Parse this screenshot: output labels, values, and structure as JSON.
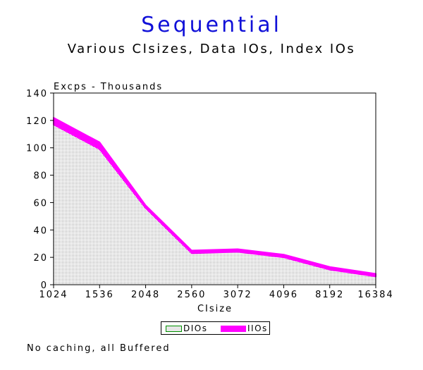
{
  "title": "Sequential",
  "subtitle": "Various CIsizes, Data IOs, Index IOs",
  "footnote": "No caching, all Buffered",
  "colors": {
    "title": "#1010d8",
    "index_ios": "#ff00ff",
    "data_ios_border": "#009000",
    "data_ios_fill": "#d8d8d8"
  },
  "chart_data": {
    "type": "area",
    "stacked": true,
    "title": "Sequential",
    "subtitle": "Various CIsizes, Data IOs, Index IOs",
    "xlabel": "CIsize",
    "ylabel": "Excps - Thousands",
    "categories": [
      "1024",
      "1536",
      "2048",
      "2560",
      "3072",
      "4096",
      "8192",
      "16384"
    ],
    "series": [
      {
        "name": "DIOs",
        "values": [
          117,
          99,
          56,
          23,
          24,
          20,
          11,
          6
        ]
      },
      {
        "name": "IIOs",
        "values": [
          5,
          5,
          2,
          2,
          2,
          2,
          2,
          2
        ]
      }
    ],
    "ylim": [
      0,
      140
    ],
    "yticks": [
      0,
      20,
      40,
      60,
      80,
      100,
      120,
      140
    ],
    "grid": false,
    "legend": "bottom",
    "footnote": "No caching, all Buffered"
  }
}
